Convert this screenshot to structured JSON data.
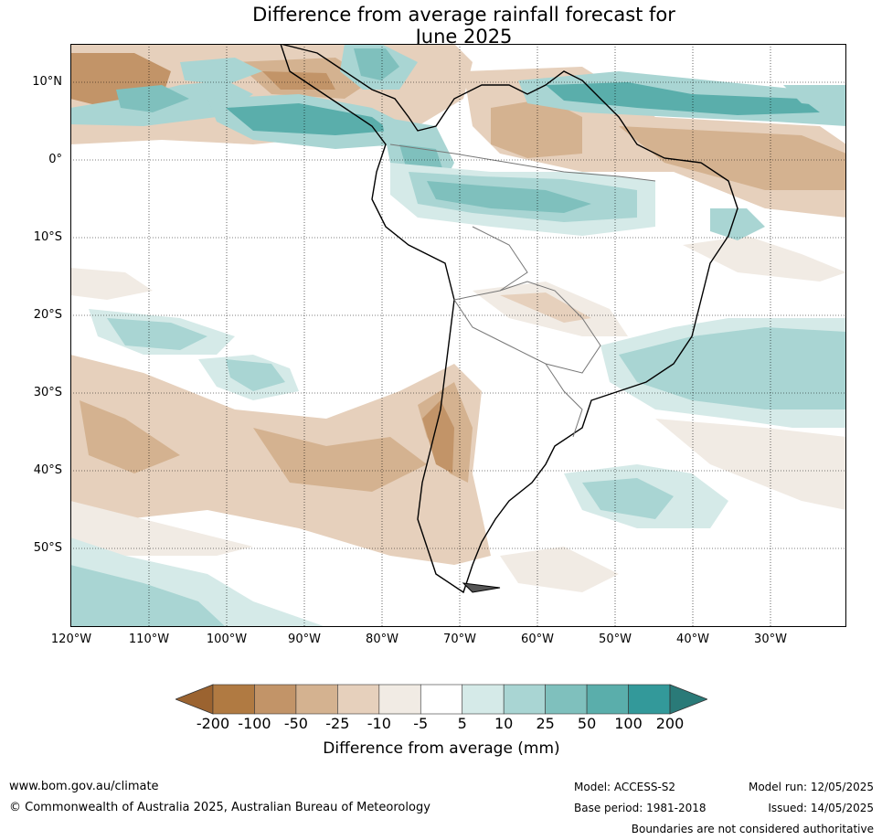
{
  "title": {
    "line1": "Difference from average rainfall forecast for",
    "line2": "June 2025"
  },
  "map": {
    "lat_labels": [
      "10°N",
      "0°",
      "10°S",
      "20°S",
      "30°S",
      "40°S",
      "50°S"
    ],
    "lon_labels": [
      "120°W",
      "110°W",
      "100°W",
      "90°W",
      "80°W",
      "70°W",
      "60°W",
      "50°W",
      "40°W",
      "30°W"
    ]
  },
  "legend": {
    "title": "Difference from average (mm)",
    "tick_labels": [
      "-200",
      "-100",
      "-50",
      "-25",
      "-10",
      "-5",
      "5",
      "10",
      "25",
      "50",
      "100",
      "200"
    ],
    "colors": [
      "#9b6330",
      "#b07a42",
      "#c29468",
      "#d4b290",
      "#e6d0bc",
      "#f1ebe4",
      "#ffffff",
      "#d5eae8",
      "#a9d5d3",
      "#7fc0bd",
      "#5aaeab",
      "#33999a",
      "#2a7a78"
    ]
  },
  "footer": {
    "website": "www.bom.gov.au/climate",
    "copyright": "© Commonwealth of Australia 2025, Australian Bureau of Meteorology",
    "model": "Model: ACCESS-S2",
    "model_run": "Model run: 12/05/2025",
    "base_period": "Base period: 1981-2018",
    "issued": "Issued: 14/05/2025",
    "disclaimer": "Boundaries are not considered authoritative"
  }
}
